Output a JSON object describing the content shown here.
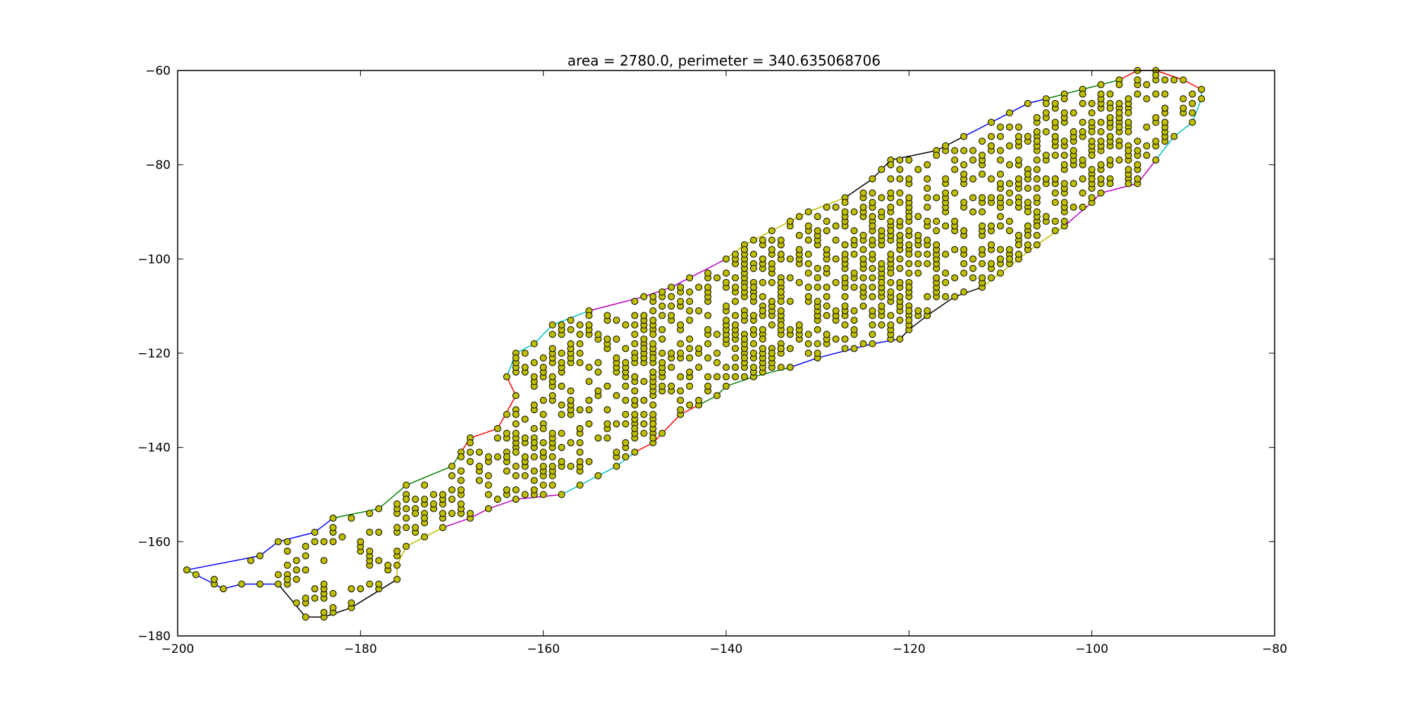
{
  "chart_data": {
    "type": "scatter",
    "title": "area = 2780.0, perimeter = 340.635068706",
    "xlabel": "",
    "ylabel": "",
    "xlim": [
      -200,
      -80
    ],
    "ylim": [
      -180,
      -60
    ],
    "x_ticks": [
      -200,
      -180,
      -160,
      -140,
      -120,
      -100,
      -80
    ],
    "y_ticks": [
      -60,
      -80,
      -100,
      -120,
      -140,
      -160,
      -180
    ],
    "grid": false,
    "marker_color": "#bfbf00",
    "marker_edge_color": "#000000",
    "boundary_colors": [
      "#0000ff",
      "#008000",
      "#ff0000",
      "#00bfbf",
      "#bf00bf",
      "#bfbf00",
      "#000000"
    ],
    "boundary": [
      [
        -199,
        -166
      ],
      [
        -191,
        -163
      ],
      [
        -189,
        -160
      ],
      [
        -185,
        -158
      ],
      [
        -183,
        -155
      ],
      [
        -178,
        -153
      ],
      [
        -175,
        -148
      ],
      [
        -170,
        -144
      ],
      [
        -169,
        -141
      ],
      [
        -168,
        -138
      ],
      [
        -165,
        -136
      ],
      [
        -163,
        -129
      ],
      [
        -164,
        -125
      ],
      [
        -163,
        -120
      ],
      [
        -161,
        -118
      ],
      [
        -159,
        -114
      ],
      [
        -155,
        -111
      ],
      [
        -149,
        -108
      ],
      [
        -146,
        -106
      ],
      [
        -144,
        -104
      ],
      [
        -140,
        -100
      ],
      [
        -138,
        -97
      ],
      [
        -135,
        -94
      ],
      [
        -131,
        -90
      ],
      [
        -127,
        -87
      ],
      [
        -124,
        -83
      ],
      [
        -122,
        -79
      ],
      [
        -117,
        -77
      ],
      [
        -114,
        -74
      ],
      [
        -111,
        -71
      ],
      [
        -109,
        -69
      ],
      [
        -107,
        -67
      ],
      [
        -105,
        -66
      ],
      [
        -103,
        -65
      ],
      [
        -101,
        -64
      ],
      [
        -99,
        -63
      ],
      [
        -97,
        -62
      ],
      [
        -95,
        -60
      ],
      [
        -93,
        -60
      ],
      [
        -90,
        -62
      ],
      [
        -88,
        -64
      ],
      [
        -88,
        -66
      ],
      [
        -89,
        -71
      ],
      [
        -91,
        -74
      ],
      [
        -93,
        -79
      ],
      [
        -95,
        -84
      ],
      [
        -99,
        -86
      ],
      [
        -100,
        -88
      ],
      [
        -103,
        -93
      ],
      [
        -106,
        -97
      ],
      [
        -108,
        -100
      ],
      [
        -110,
        -103
      ],
      [
        -112,
        -106
      ],
      [
        -115,
        -108
      ],
      [
        -118,
        -112
      ],
      [
        -120,
        -115
      ],
      [
        -121,
        -117
      ],
      [
        -124,
        -118
      ],
      [
        -126,
        -119
      ],
      [
        -130,
        -121
      ],
      [
        -133,
        -123
      ],
      [
        -137,
        -125
      ],
      [
        -140,
        -127
      ],
      [
        -141,
        -129
      ],
      [
        -143,
        -131
      ],
      [
        -145,
        -133
      ],
      [
        -147,
        -137
      ],
      [
        -148,
        -139
      ],
      [
        -150,
        -141
      ],
      [
        -152,
        -144
      ],
      [
        -154,
        -146
      ],
      [
        -156,
        -148
      ],
      [
        -158,
        -150
      ],
      [
        -163,
        -151
      ],
      [
        -166,
        -153
      ],
      [
        -168,
        -155
      ],
      [
        -171,
        -157
      ],
      [
        -173,
        -159
      ],
      [
        -175,
        -161
      ],
      [
        -176,
        -165
      ],
      [
        -176,
        -168
      ],
      [
        -181,
        -174
      ],
      [
        -184,
        -176
      ],
      [
        -186,
        -176
      ],
      [
        -189,
        -169
      ],
      [
        -193,
        -169
      ],
      [
        -195,
        -170
      ],
      [
        -196,
        -169
      ],
      [
        -198,
        -167
      ],
      [
        -199,
        -166
      ]
    ],
    "clusters": [
      {
        "x_range": [
          -198,
          -186
        ],
        "y_range": [
          -171,
          -160
        ],
        "density": 0.18
      },
      {
        "x_range": [
          -188,
          -170
        ],
        "y_range": [
          -176,
          -150
        ],
        "density": 0.26
      },
      {
        "x_range": [
          -176,
          -160
        ],
        "y_range": [
          -156,
          -132
        ],
        "density": 0.3
      },
      {
        "x_range": [
          -164,
          -148
        ],
        "y_range": [
          -150,
          -112
        ],
        "density": 0.36
      },
      {
        "x_range": [
          -150,
          -134
        ],
        "y_range": [
          -140,
          -98
        ],
        "density": 0.4
      },
      {
        "x_range": [
          -138,
          -120
        ],
        "y_range": [
          -124,
          -86
        ],
        "density": 0.44
      },
      {
        "x_range": [
          -124,
          -106
        ],
        "y_range": [
          -114,
          -74
        ],
        "density": 0.4
      },
      {
        "x_range": [
          -110,
          -96
        ],
        "y_range": [
          -100,
          -64
        ],
        "density": 0.36
      },
      {
        "x_range": [
          -100,
          -88
        ],
        "y_range": [
          -90,
          -60
        ],
        "density": 0.32
      }
    ]
  }
}
